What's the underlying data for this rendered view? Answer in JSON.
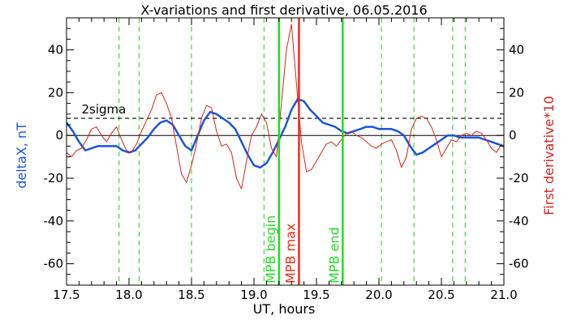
{
  "chart_data": {
    "type": "line",
    "title": "X-variations and first derivative, 06.05.2016",
    "xlabel": "UT, hours",
    "ylabel_left": "deltaX, nT",
    "ylabel_right": "First derivative*10",
    "xlim": [
      17.5,
      21.0
    ],
    "ylim": [
      -70,
      55
    ],
    "x_ticks": [
      17.5,
      18.0,
      18.5,
      19.0,
      19.5,
      20.0,
      20.5,
      21.0
    ],
    "x_tick_labels": [
      "17.5",
      "18.0",
      "18.5",
      "19.0",
      "19.5",
      "20.0",
      "20.5",
      "21.0"
    ],
    "y_ticks": [
      -60,
      -40,
      -20,
      0,
      20,
      40
    ],
    "y_tick_labels": [
      "-60",
      "-40",
      "-20",
      "0",
      "20",
      "40"
    ],
    "grid": false,
    "colors": {
      "deltaX": "#1a56d8",
      "derivative": "#d8231a",
      "mpb": "#22dd22",
      "mpb_max": "#ee2a1a",
      "dashed_green": "#22cc22",
      "threshold": "#000000",
      "axis": "#000000"
    },
    "threshold": {
      "label": "2sigma",
      "value": 8
    },
    "zero_line": 0,
    "markers": [
      {
        "label": "MPB begin",
        "x": 19.2,
        "color": "#22dd22"
      },
      {
        "label": "MPB max",
        "x": 19.36,
        "color": "#ee2a1a"
      },
      {
        "label": "MPB end",
        "x": 19.71,
        "color": "#22dd22"
      }
    ],
    "dashed_verticals": [
      17.92,
      18.08,
      18.5,
      19.08,
      20.02,
      20.28,
      20.59,
      20.69
    ],
    "series": [
      {
        "key": "deltaX",
        "color": "#1a56d8",
        "x": [
          17.5,
          17.55,
          17.6,
          17.65,
          17.7,
          17.75,
          17.8,
          17.85,
          17.9,
          17.95,
          18.0,
          18.05,
          18.1,
          18.15,
          18.2,
          18.25,
          18.3,
          18.35,
          18.4,
          18.45,
          18.5,
          18.55,
          18.6,
          18.65,
          18.7,
          18.75,
          18.8,
          18.85,
          18.9,
          18.95,
          19.0,
          19.05,
          19.1,
          19.15,
          19.2,
          19.25,
          19.3,
          19.35,
          19.4,
          19.45,
          19.5,
          19.55,
          19.6,
          19.65,
          19.7,
          19.75,
          19.8,
          19.85,
          19.9,
          19.95,
          20.0,
          20.05,
          20.1,
          20.15,
          20.2,
          20.25,
          20.3,
          20.35,
          20.4,
          20.45,
          20.5,
          20.55,
          20.6,
          20.65,
          20.7,
          20.75,
          20.8,
          20.85,
          20.9,
          20.95,
          21.0
        ],
        "y": [
          6,
          2,
          -3,
          -7,
          -6,
          -5,
          -5,
          -5,
          -5,
          -7,
          -8,
          -7,
          -4,
          -1,
          3,
          6,
          7,
          5,
          0,
          -5,
          -7,
          0,
          7,
          11,
          10,
          8,
          6,
          3,
          -3,
          -9,
          -14,
          -15,
          -13,
          -8,
          -2,
          4,
          12,
          17,
          16,
          12,
          9,
          6,
          5,
          4,
          2,
          1,
          2,
          3,
          4,
          4,
          3,
          3,
          3,
          2,
          0,
          -5,
          -9,
          -8,
          -6,
          -4,
          -2,
          0,
          0,
          -1,
          -1,
          -1,
          -1,
          -2,
          -3,
          -4,
          -5
        ]
      },
      {
        "key": "derivative",
        "color": "#d8231a",
        "x": [
          17.5,
          17.54,
          17.58,
          17.62,
          17.66,
          17.7,
          17.74,
          17.78,
          17.82,
          17.86,
          17.9,
          17.94,
          17.98,
          18.02,
          18.06,
          18.1,
          18.14,
          18.18,
          18.22,
          18.26,
          18.3,
          18.34,
          18.38,
          18.42,
          18.46,
          18.5,
          18.54,
          18.58,
          18.62,
          18.66,
          18.7,
          18.74,
          18.78,
          18.82,
          18.86,
          18.9,
          18.94,
          18.98,
          19.02,
          19.06,
          19.1,
          19.14,
          19.18,
          19.22,
          19.26,
          19.3,
          19.34,
          19.38,
          19.42,
          19.46,
          19.5,
          19.54,
          19.58,
          19.62,
          19.66,
          19.7,
          19.74,
          19.78,
          19.82,
          19.86,
          19.9,
          19.94,
          19.98,
          20.02,
          20.06,
          20.1,
          20.14,
          20.18,
          20.22,
          20.26,
          20.3,
          20.34,
          20.38,
          20.42,
          20.46,
          20.5,
          20.54,
          20.58,
          20.62,
          20.66,
          20.7,
          20.74,
          20.78,
          20.82,
          20.86,
          20.9,
          20.94,
          20.98
        ],
        "y": [
          -8,
          -10,
          -7,
          -6,
          -2,
          3,
          4,
          0,
          -3,
          1,
          4,
          -2,
          -7,
          -8,
          -4,
          2,
          7,
          12,
          19,
          20,
          15,
          8,
          -5,
          -18,
          -22,
          -14,
          -4,
          8,
          14,
          13,
          2,
          -5,
          -4,
          -8,
          -20,
          -25,
          -12,
          0,
          4,
          10,
          6,
          -6,
          -10,
          15,
          40,
          52,
          24,
          -3,
          -17,
          -16,
          -12,
          -8,
          -4,
          -3,
          -5,
          -2,
          1,
          2,
          0,
          -1,
          -3,
          -5,
          -6,
          -4,
          -3,
          -2,
          -7,
          -15,
          -10,
          3,
          8,
          9,
          8,
          4,
          -2,
          -10,
          -6,
          -2,
          -3,
          0,
          1,
          0,
          2,
          1,
          -2,
          -6,
          -8,
          -4
        ]
      }
    ]
  }
}
